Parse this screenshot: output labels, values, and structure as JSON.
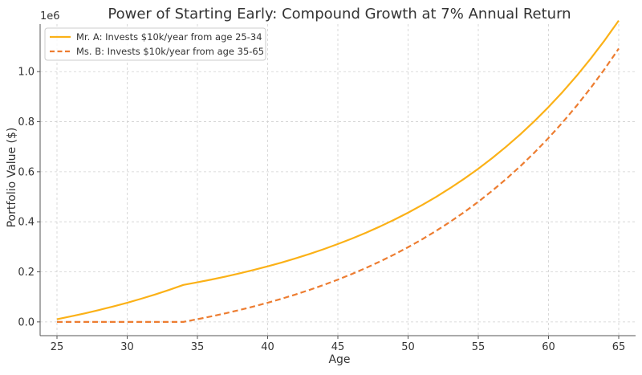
{
  "chart_data": {
    "type": "line",
    "title": "Power of Starting Early: Compound Growth at 7% Annual Return",
    "xlabel": "Age",
    "ylabel": "Portfolio Value ($)",
    "y_offset_label": "1e6",
    "xlim": [
      23.8,
      66.2
    ],
    "ylim": [
      -55000,
      1190000
    ],
    "x_ticks": [
      25,
      30,
      35,
      40,
      45,
      50,
      55,
      60,
      65
    ],
    "y_ticks": [
      0,
      200000,
      400000,
      600000,
      800000,
      1000000
    ],
    "y_tick_labels": [
      "0.0",
      "0.2",
      "0.4",
      "0.6",
      "0.8",
      "1.0"
    ],
    "grid": true,
    "legend_position": "top-left",
    "series": [
      {
        "name": "Mr. A: Invests $10k/year from age 25-34",
        "color": "#FBB117",
        "style": "solid",
        "x": [
          25,
          26,
          27,
          28,
          29,
          30,
          31,
          32,
          33,
          34,
          35,
          36,
          37,
          38,
          39,
          40,
          41,
          42,
          43,
          44,
          45,
          46,
          47,
          48,
          49,
          50,
          51,
          52,
          53,
          54,
          55,
          56,
          57,
          58,
          59,
          60,
          61,
          62,
          63,
          64,
          65
        ],
        "y": [
          10700,
          22149,
          34399,
          47507,
          61533,
          76540,
          92598,
          109780,
          128164,
          147836,
          158184,
          169257,
          181105,
          193782,
          207347,
          221861,
          237391,
          254008,
          271789,
          290814,
          311171,
          332953,
          356260,
          381198,
          407882,
          436434,
          466984,
          499673,
          534650,
          572075,
          612121,
          654969,
          700817,
          749874,
          802365,
          858531,
          918628,
          982932,
          1051737,
          1125359,
          1204134
        ]
      },
      {
        "name": "Ms. B: Invests $10k/year from age 35-65",
        "color": "#ED7D31",
        "style": "dashed",
        "x": [
          25,
          26,
          27,
          28,
          29,
          30,
          31,
          32,
          33,
          34,
          35,
          36,
          37,
          38,
          39,
          40,
          41,
          42,
          43,
          44,
          45,
          46,
          47,
          48,
          49,
          50,
          51,
          52,
          53,
          54,
          55,
          56,
          57,
          58,
          59,
          60,
          61,
          62,
          63,
          64,
          65
        ],
        "y": [
          0,
          0,
          0,
          0,
          0,
          0,
          0,
          0,
          0,
          0,
          10700,
          22149,
          34399,
          47507,
          61533,
          76540,
          92598,
          109780,
          128164,
          147836,
          168885,
          191407,
          215505,
          241290,
          268881,
          298402,
          329990,
          363790,
          399955,
          438652,
          480057,
          524361,
          571767,
          622491,
          676765,
          734839,
          796977,
          863465,
          934608,
          1010730,
          1092181
        ]
      }
    ]
  }
}
